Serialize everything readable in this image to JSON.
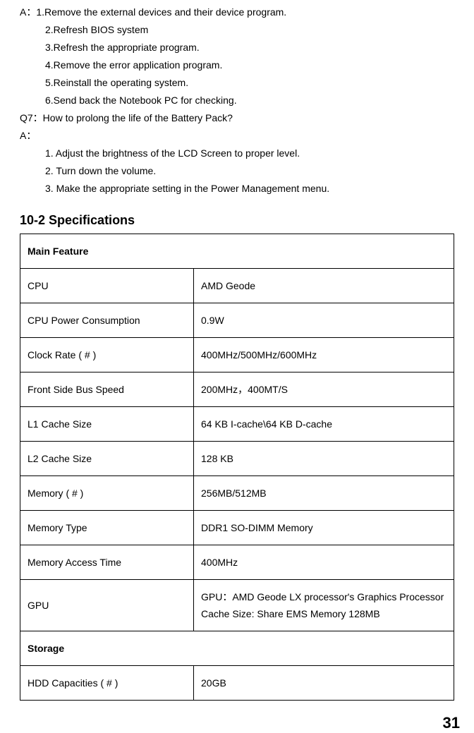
{
  "qa": {
    "a_prev": [
      "A：1.Remove the external devices and their device program.",
      "2.Refresh BIOS system",
      "3.Refresh the appropriate program.",
      "4.Remove the error application program.",
      "5.Reinstall the operating system.",
      "6.Send back the Notebook PC for checking."
    ],
    "q7": "Q7：How to prolong the life of the Battery Pack?",
    "a7_label": "A：",
    "a7": [
      "1. Adjust the brightness of the LCD Screen to proper level.",
      "2. Turn down the volume.",
      "3. Make the appropriate setting in the Power Management menu."
    ]
  },
  "section_title": "10-2 Specifications",
  "spec": {
    "main_feature_header": "Main Feature",
    "rows": [
      {
        "label": "CPU",
        "value": "AMD Geode"
      },
      {
        "label": "CPU Power Consumption",
        "value": "0.9W"
      },
      {
        "label": "Clock Rate ( # )",
        "value": "400MHz/500MHz/600MHz"
      },
      {
        "label": "Front Side Bus Speed",
        "value": "200MHz，400MT/S"
      },
      {
        "label": "L1 Cache Size",
        "value": "64 KB I-cache\\64 KB D-cache"
      },
      {
        "label": "L2 Cache Size",
        "value": "128 KB"
      },
      {
        "label": "Memory ( # )",
        "value": "256MB/512MB"
      },
      {
        "label": "Memory Type",
        "value": "DDR1 SO-DIMM Memory"
      },
      {
        "label": "Memory Access Time",
        "value": "400MHz"
      },
      {
        "label": "GPU",
        "value": "GPU：AMD Geode LX processor's Graphics Processor\nCache Size: Share EMS Memory 128MB"
      }
    ],
    "storage_header": "Storage",
    "storage_rows": [
      {
        "label": "HDD Capacities ( # )",
        "value": "20GB"
      }
    ]
  },
  "page_number": "31"
}
